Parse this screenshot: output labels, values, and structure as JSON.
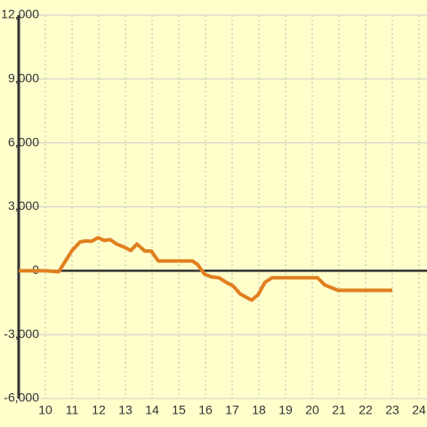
{
  "chart_data": {
    "type": "line",
    "x": [
      9.0,
      10,
      10.5,
      10.7,
      11,
      11.3,
      11.5,
      11.73,
      11.97,
      12.2,
      12.43,
      12.67,
      12.97,
      13.2,
      13.43,
      13.73,
      13.97,
      14.23,
      15.5,
      15.7,
      15.97,
      16.23,
      16.5,
      16.77,
      17.03,
      17.3,
      17.73,
      17.97,
      18.23,
      18.5,
      20.2,
      20.47,
      20.97,
      23
    ],
    "series": [
      {
        "color": "#e07f20",
        "values": [
          0,
          0,
          -50,
          350,
          950,
          1350,
          1400,
          1380,
          1550,
          1420,
          1460,
          1250,
          1100,
          950,
          1250,
          920,
          920,
          460,
          460,
          300,
          -170,
          -290,
          -330,
          -540,
          -710,
          -1090,
          -1380,
          -1130,
          -540,
          -330,
          -330,
          -670,
          -920,
          -920
        ]
      }
    ],
    "xlim": [
      9.0,
      24.3
    ],
    "xticks": [
      10,
      11,
      12,
      13,
      14,
      15,
      16,
      17,
      18,
      19,
      20,
      21,
      22,
      23,
      24
    ],
    "ylim": [
      -6000,
      12000
    ],
    "yticks": [
      {
        "value": -6000,
        "label": "-6,000"
      },
      {
        "value": -3000,
        "label": "-3,000"
      },
      0,
      {
        "value": 3000,
        "label": "3,000"
      },
      {
        "value": 6000,
        "label": "6,000"
      },
      {
        "value": 9000,
        "label": "9,000"
      },
      {
        "value": 12000,
        "label": "12,000"
      }
    ],
    "grid": true
  }
}
